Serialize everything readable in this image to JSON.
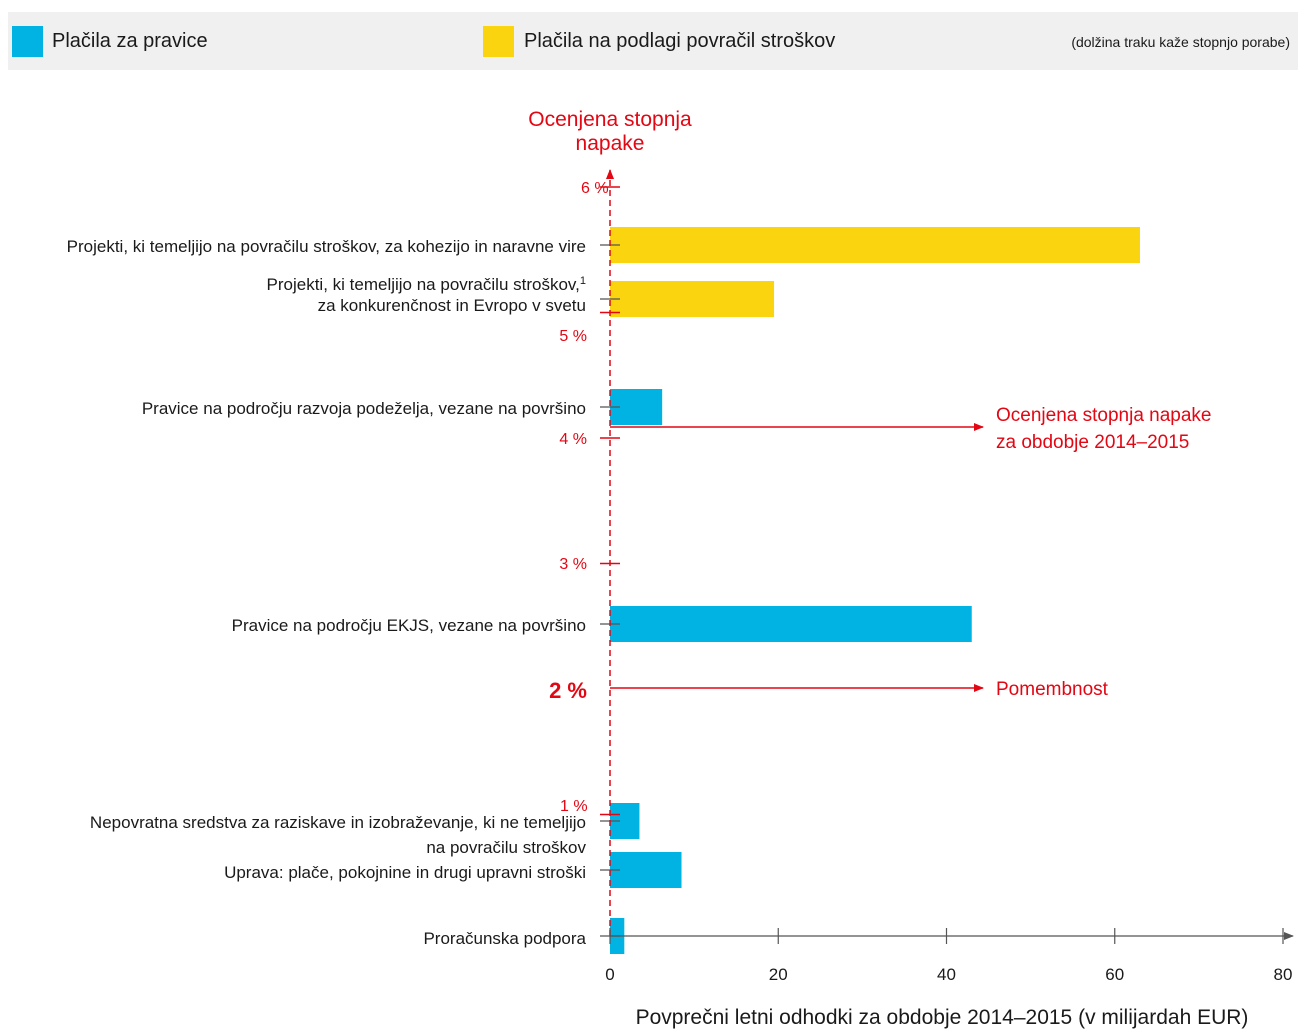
{
  "legend": {
    "items": [
      {
        "label": "Plačila za pravice",
        "color": "#00b3e3"
      },
      {
        "label": "Plačila na podlagi povračil stroškov",
        "color": "#fad50f"
      }
    ],
    "note": "(dolžina traku kaže stopnjo porabe)"
  },
  "annotations": {
    "threshold_2014": {
      "line1": "Ocenjena stopnja napake",
      "line2": "za obdobje 2014–2015",
      "value": 4
    },
    "materiality": {
      "label": "Pomembnost",
      "value": 2
    }
  },
  "colors": {
    "entitlement": "#00b3e3",
    "reimbursement": "#fad50f",
    "accent": "#e30613",
    "axis": "#555555"
  },
  "chart_data": {
    "type": "bar",
    "orientation": "horizontal",
    "title": "",
    "xlabel": "Povprečni letni odhodki za obdobje 2014–2015 (v milijardah EUR)",
    "ylabel": "Ocenjena stopnja napake",
    "ylabel_lines": [
      "Ocenjena stopnja",
      "napake"
    ],
    "xlim": [
      0,
      80
    ],
    "ylim": [
      0,
      6
    ],
    "x_ticks": [
      "0",
      "20",
      "40",
      "60",
      "80"
    ],
    "y_ticks": [
      {
        "value": 6,
        "label": "6 %"
      },
      {
        "value": 5,
        "label": "5 %"
      },
      {
        "value": 4,
        "label": "4 %"
      },
      {
        "value": 3,
        "label": "3 %"
      },
      {
        "value": 2,
        "label": "2 %",
        "emphasis": true
      },
      {
        "value": 1,
        "label": "1 %"
      }
    ],
    "series": [
      {
        "category": "Projekti, ki temeljijo na povračilu stroškov, za kohezijo in naravne vire",
        "label_lines": [
          "Projekti, ki temeljijo na povračilu stroškov, za kohezijo in naravne vire"
        ],
        "type": "reimbursement",
        "spend": 63,
        "error_rate": 5.7
      },
      {
        "category": "Projekti, ki temeljijo na povračilu stroškov, za konkurenčnost in Evropo v svetu",
        "label_lines": [
          "Projekti, ki temeljijo na povračilu stroškov,",
          "za konkurenčnost in Evropo v svetu"
        ],
        "footnote": "1",
        "type": "reimbursement",
        "spend": 19.5,
        "error_rate": 5.2
      },
      {
        "category": "Pravice na področju razvoja podeželja, vezane na površino",
        "label_lines": [
          "Pravice na področju razvoja podeželja, vezane na površino"
        ],
        "type": "entitlement",
        "spend": 6.2,
        "error_rate": 4.2
      },
      {
        "category": "Pravice na področju EKJS, vezane na površino",
        "label_lines": [
          "Pravice na področju EKJS, vezane na površino"
        ],
        "type": "entitlement",
        "spend": 43,
        "error_rate": 2.5
      },
      {
        "category": "Nepovratna sredstva za raziskave in izobraževanje, ki ne temeljijo na povračilu stroškov",
        "label_lines": [
          "Nepovratna sredstva za raziskave in izobraževanje, ki ne temeljijo",
          "na povračilu stroškov"
        ],
        "type": "entitlement",
        "spend": 3.5,
        "error_rate": 0.92
      },
      {
        "category": "Uprava: plače, pokojnine in drugi upravni stroški",
        "label_lines": [
          "Uprava: plače, pokojnine in drugi upravni stroški"
        ],
        "type": "entitlement",
        "spend": 8.5,
        "error_rate": 0.6
      },
      {
        "category": "Proračunska podpora",
        "label_lines": [
          "Proračunska podpora"
        ],
        "type": "entitlement",
        "spend": 1.7,
        "error_rate": 0.1
      }
    ]
  }
}
